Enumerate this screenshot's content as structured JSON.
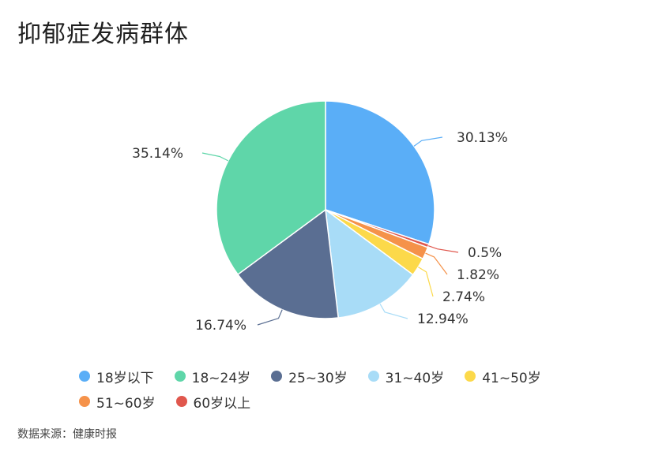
{
  "title": "抑郁症发病群体",
  "source": "数据来源：健康时报",
  "chart_data": {
    "type": "pie",
    "title": "抑郁症发病群体",
    "slices": [
      {
        "label": "18岁以下",
        "value": 30.13,
        "display": "30.13%",
        "color": "#5aaef7"
      },
      {
        "label": "60岁以上",
        "value": 0.5,
        "display": "0.5%",
        "color": "#e0574d"
      },
      {
        "label": "51~60岁",
        "value": 1.82,
        "display": "1.82%",
        "color": "#f5924a"
      },
      {
        "label": "41~50岁",
        "value": 2.74,
        "display": "2.74%",
        "color": "#fcd94a"
      },
      {
        "label": "31~40岁",
        "value": 12.94,
        "display": "12.94%",
        "color": "#a8dcf7"
      },
      {
        "label": "25~30岁",
        "value": 16.74,
        "display": "16.74%",
        "color": "#5a6e92"
      },
      {
        "label": "18~24岁",
        "value": 35.14,
        "display": "35.14%",
        "color": "#5fd6a9"
      }
    ],
    "legend": [
      "18岁以下",
      "18~24岁",
      "25~30岁",
      "31~40岁",
      "41~50岁",
      "51~60岁",
      "60岁以上"
    ],
    "legend_position": "bottom"
  }
}
